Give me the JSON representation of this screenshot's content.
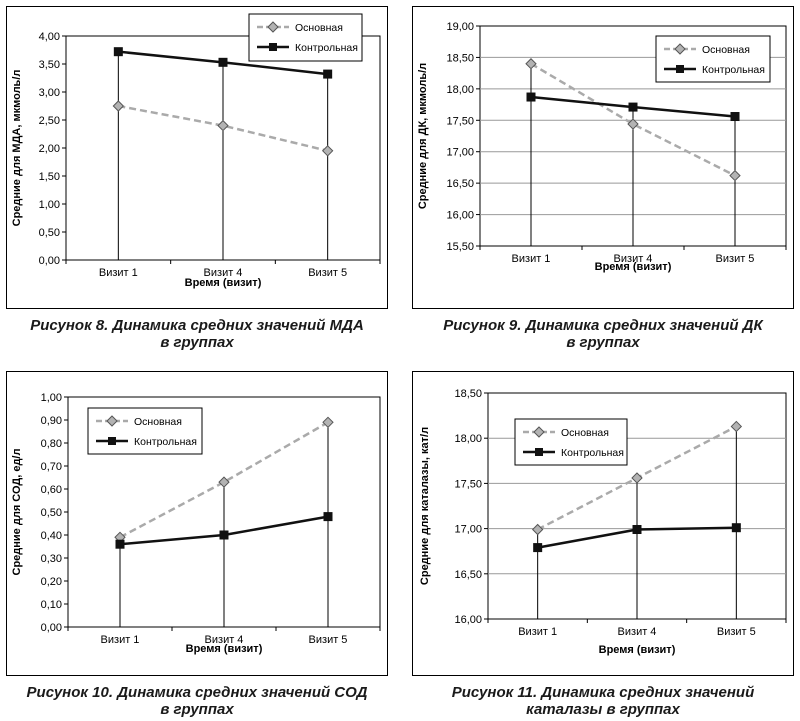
{
  "chart_data": [
    {
      "type": "line",
      "categories": [
        "Визит 1",
        "Визит 4",
        "Визит 5"
      ],
      "series": [
        {
          "name": "Основная",
          "values": [
            2.75,
            2.4,
            1.95
          ],
          "style": "dashed",
          "color": "#aaaaaa",
          "marker": "diamond"
        },
        {
          "name": "Контрольная",
          "values": [
            3.72,
            3.53,
            3.32
          ],
          "style": "solid",
          "color": "#111111",
          "marker": "square"
        }
      ],
      "xlabel": "Время (визит)",
      "ylabel": "Средние для МДА, мкмоль/л",
      "ylim": [
        0,
        4
      ],
      "yticks": [
        "0,00",
        "0,50",
        "1,00",
        "1,50",
        "2,00",
        "2,50",
        "3,00",
        "3,50",
        "4,00"
      ],
      "grid": false,
      "legend": "top-right",
      "drop_lines": true
    },
    {
      "type": "line",
      "categories": [
        "Визит 1",
        "Визит 4",
        "Визит 5"
      ],
      "series": [
        {
          "name": "Основная",
          "values": [
            18.4,
            17.44,
            16.62
          ],
          "style": "dashed",
          "color": "#aaaaaa",
          "marker": "diamond"
        },
        {
          "name": "Контрольная",
          "values": [
            17.87,
            17.71,
            17.56
          ],
          "style": "solid",
          "color": "#111111",
          "marker": "square"
        }
      ],
      "xlabel": "Время (визит)",
      "ylabel": "Средние для ДК, мкмоль/л",
      "ylim": [
        15.5,
        19
      ],
      "yticks": [
        "15,50",
        "16,00",
        "16,50",
        "17,00",
        "17,50",
        "18,00",
        "18,50",
        "19,00"
      ],
      "grid": true,
      "legend": "top-right",
      "drop_lines": true
    },
    {
      "type": "line",
      "categories": [
        "Визит 1",
        "Визит 4",
        "Визит 5"
      ],
      "series": [
        {
          "name": "Основная",
          "values": [
            0.39,
            0.63,
            0.89
          ],
          "style": "dashed",
          "color": "#aaaaaa",
          "marker": "diamond"
        },
        {
          "name": "Контрольная",
          "values": [
            0.36,
            0.4,
            0.48
          ],
          "style": "solid",
          "color": "#111111",
          "marker": "square"
        }
      ],
      "xlabel": "Время (визит)",
      "ylabel": "Средние для СОД, ед/л",
      "ylim": [
        0,
        1
      ],
      "yticks": [
        "0,00",
        "0,10",
        "0,20",
        "0,30",
        "0,40",
        "0,50",
        "0,60",
        "0,70",
        "0,80",
        "0,90",
        "1,00"
      ],
      "grid": false,
      "legend": "top-left",
      "drop_lines": true
    },
    {
      "type": "line",
      "categories": [
        "Визит 1",
        "Визит 4",
        "Визит 5"
      ],
      "series": [
        {
          "name": "Основная",
          "values": [
            16.99,
            17.56,
            18.13
          ],
          "style": "dashed",
          "color": "#aaaaaa",
          "marker": "diamond"
        },
        {
          "name": "Контрольная",
          "values": [
            16.79,
            16.99,
            17.01
          ],
          "style": "solid",
          "color": "#111111",
          "marker": "square"
        }
      ],
      "xlabel": "Время (визит)",
      "ylabel": "Средние для каталазы, кат/л",
      "ylim": [
        16,
        18.5
      ],
      "yticks": [
        "16,00",
        "16,50",
        "17,00",
        "17,50",
        "18,00",
        "18,50"
      ],
      "grid": true,
      "legend": "top-left",
      "drop_lines": true
    }
  ],
  "captions": [
    {
      "line1": "Рисунок 8. Динамика средних значений МДА",
      "line2": "в группах"
    },
    {
      "line1": "Рисунок 9. Динамика средних значений ДК",
      "line2": "в группах"
    },
    {
      "line1": "Рисунок 10. Динамика средних значений СОД",
      "line2": "в группах"
    },
    {
      "line1": "Рисунок 11. Динамика средних значений",
      "line2": "каталазы в группах"
    }
  ]
}
